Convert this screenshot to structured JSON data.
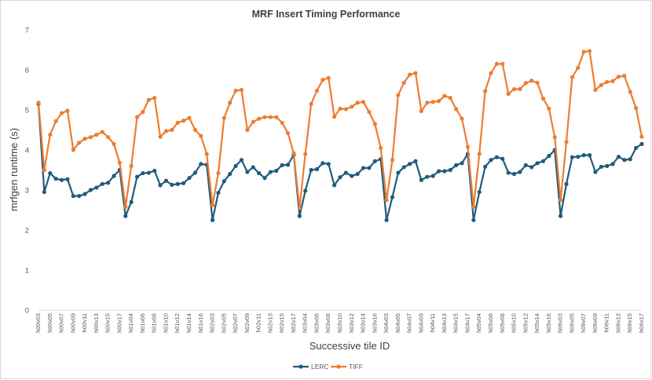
{
  "chart_data": {
    "type": "line",
    "title": "MRF Insert Timing Performance",
    "xlabel": "Successive tile ID",
    "ylabel": "mrfgen runtime (s)",
    "ylim": [
      0,
      7
    ],
    "yticks": [
      0,
      1,
      2,
      3,
      4,
      5,
      6,
      7
    ],
    "grid": false,
    "legend_position": "bottom",
    "categories": [
      "h00v03",
      "h00v04",
      "h00v05",
      "h00v06",
      "h00v07",
      "h00v08",
      "h00v09",
      "h00v10",
      "h00v11",
      "h00v12",
      "h00v13",
      "h00v14",
      "h00v15",
      "h00v16",
      "h00v17",
      "h01v03",
      "h01v04",
      "h01v05",
      "h01v06",
      "h01v07",
      "h01v08",
      "h01v09",
      "h01v10",
      "h01v11",
      "h01v12",
      "h01v13",
      "h01v14",
      "h01v15",
      "h01v16",
      "h01v17",
      "h02v03",
      "h02v04",
      "h02v05",
      "h02v06",
      "h02v07",
      "h02v08",
      "h02v09",
      "h02v10",
      "h02v11",
      "h02v12",
      "h02v13",
      "h02v14",
      "h02v15",
      "h02v16",
      "h02v17",
      "h03v03",
      "h03v04",
      "h03v05",
      "h03v06",
      "h03v07",
      "h03v08",
      "h03v09",
      "h03v10",
      "h03v11",
      "h03v12",
      "h03v13",
      "h03v14",
      "h03v15",
      "h03v16",
      "h03v17",
      "h04v03",
      "h04v04",
      "h04v05",
      "h04v06",
      "h04v07",
      "h04v08",
      "h04v09",
      "h04v10",
      "h04v11",
      "h04v12",
      "h04v13",
      "h04v14",
      "h04v15",
      "h04v16",
      "h04v17",
      "h05v03",
      "h05v04",
      "h05v05",
      "h05v06",
      "h05v07",
      "h05v08",
      "h05v09",
      "h05v10",
      "h05v11",
      "h05v12",
      "h05v13",
      "h05v14",
      "h05v15",
      "h05v16",
      "h05v17",
      "h06v03",
      "h06v04",
      "h06v05",
      "h06v06",
      "h06v07",
      "h06v08",
      "h06v09",
      "h06v10",
      "h06v11",
      "h06v12",
      "h06v13",
      "h06v14",
      "h06v15",
      "h06v16",
      "h06v17"
    ],
    "series": [
      {
        "name": "LERC",
        "color": "#1f5c7a",
        "values": [
          5.15,
          2.95,
          3.42,
          3.28,
          3.25,
          3.27,
          2.85,
          2.85,
          2.9,
          3.0,
          3.06,
          3.15,
          3.18,
          3.35,
          3.5,
          2.35,
          2.7,
          3.33,
          3.42,
          3.43,
          3.48,
          3.12,
          3.23,
          3.13,
          3.15,
          3.17,
          3.3,
          3.43,
          3.65,
          3.63,
          2.25,
          2.93,
          3.22,
          3.4,
          3.6,
          3.75,
          3.45,
          3.57,
          3.42,
          3.3,
          3.45,
          3.48,
          3.62,
          3.63,
          3.88,
          2.35,
          2.98,
          3.5,
          3.52,
          3.67,
          3.65,
          3.12,
          3.32,
          3.43,
          3.35,
          3.4,
          3.55,
          3.55,
          3.72,
          3.77,
          2.25,
          2.82,
          3.43,
          3.57,
          3.65,
          3.72,
          3.25,
          3.33,
          3.35,
          3.47,
          3.47,
          3.5,
          3.62,
          3.67,
          3.9,
          2.25,
          2.95,
          3.58,
          3.75,
          3.82,
          3.78,
          3.43,
          3.4,
          3.45,
          3.62,
          3.57,
          3.67,
          3.72,
          3.85,
          4.0,
          2.35,
          3.15,
          3.82,
          3.83,
          3.87,
          3.87,
          3.45,
          3.58,
          3.6,
          3.65,
          3.83,
          3.75,
          3.77,
          4.05,
          4.15
        ]
      },
      {
        "name": "TIFF",
        "color": "#ed7d31",
        "values": [
          5.18,
          3.5,
          4.38,
          4.72,
          4.92,
          4.98,
          4.0,
          4.18,
          4.28,
          4.32,
          4.38,
          4.45,
          4.32,
          4.15,
          3.68,
          2.58,
          3.6,
          4.82,
          4.95,
          5.25,
          5.3,
          4.33,
          4.47,
          4.5,
          4.68,
          4.73,
          4.8,
          4.5,
          4.35,
          3.9,
          2.62,
          3.42,
          4.8,
          5.18,
          5.48,
          5.5,
          4.5,
          4.7,
          4.78,
          4.82,
          4.82,
          4.82,
          4.68,
          4.42,
          3.92,
          2.55,
          3.9,
          5.15,
          5.48,
          5.75,
          5.8,
          4.83,
          5.03,
          5.02,
          5.08,
          5.18,
          5.2,
          4.95,
          4.65,
          4.05,
          2.75,
          3.75,
          5.37,
          5.68,
          5.88,
          5.92,
          4.97,
          5.18,
          5.2,
          5.22,
          5.35,
          5.3,
          5.02,
          4.78,
          4.08,
          2.58,
          3.9,
          5.47,
          5.92,
          6.15,
          6.15,
          5.4,
          5.52,
          5.52,
          5.67,
          5.73,
          5.68,
          5.28,
          5.03,
          4.32,
          2.75,
          4.2,
          5.82,
          6.05,
          6.45,
          6.47,
          5.5,
          5.62,
          5.7,
          5.72,
          5.83,
          5.85,
          5.45,
          5.05,
          4.33
        ]
      }
    ]
  }
}
